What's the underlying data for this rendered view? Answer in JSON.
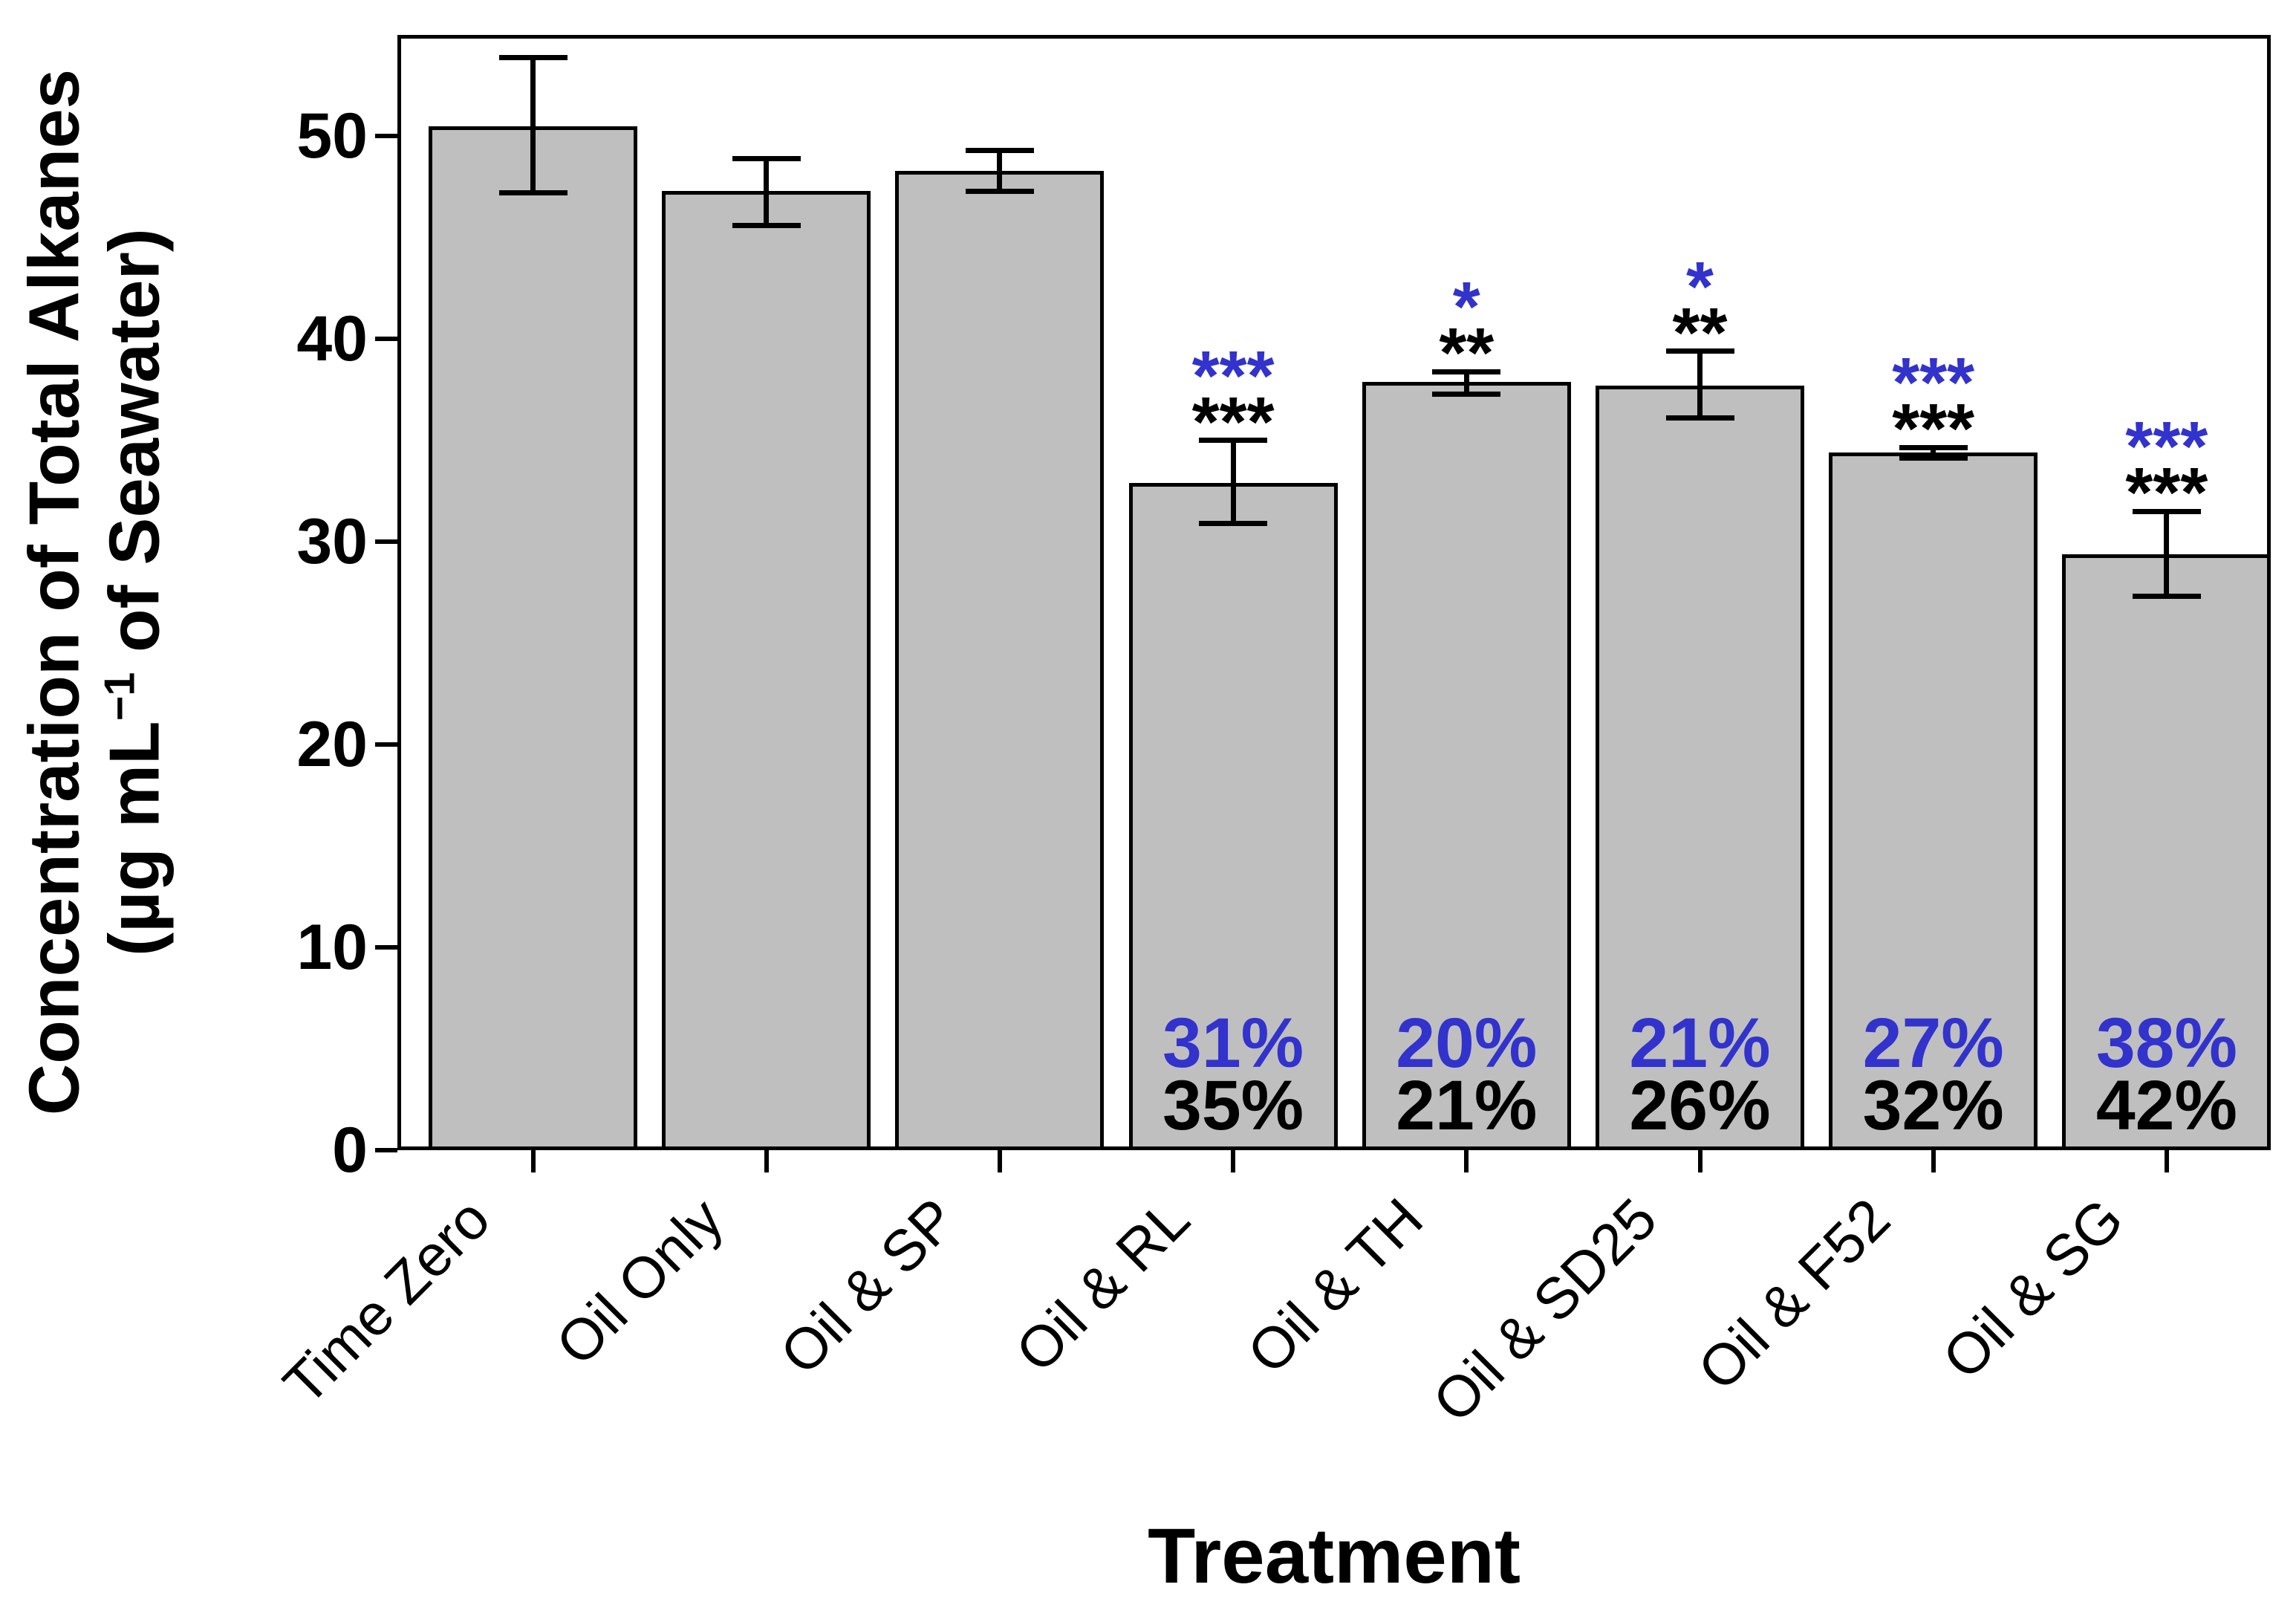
{
  "figure": {
    "xlabel": "Treatment",
    "ylabel_line1": "Concentration of Total Alkanes",
    "ylabel_line2_pre": "(µg mL",
    "ylabel_sup": "−1",
    "ylabel_line2_post": " of Seawater)"
  },
  "colors": {
    "bar_fill": "#BFBFBF",
    "bar_stroke": "#000000",
    "annotation_blue": "#3232CD",
    "annotation_black": "#000000"
  },
  "chart_data": {
    "type": "bar",
    "title": "",
    "xlabel": "Treatment",
    "ylabel": "Concentration of Total Alkanes (µg mL⁻¹ of Seawater)",
    "ylim": [
      0,
      55
    ],
    "yticks": [
      0,
      10,
      20,
      30,
      40,
      50
    ],
    "grid": false,
    "legend": false,
    "categories": [
      "Time Zero",
      "Oil Only",
      "Oil & SP",
      "Oil & RL",
      "Oil & TH",
      "Oil & SD25",
      "Oil & F52",
      "Oil & SG"
    ],
    "values": [
      50.5,
      47.3,
      48.3,
      32.9,
      37.9,
      37.7,
      34.4,
      29.4
    ],
    "error_plus": [
      3.4,
      1.6,
      1.0,
      2.1,
      0.5,
      1.7,
      0.25,
      2.1
    ],
    "error_minus": [
      3.3,
      1.7,
      1.0,
      2.0,
      0.6,
      1.6,
      0.25,
      2.1
    ],
    "significance_blue": [
      "",
      "",
      "",
      "***",
      "*",
      "*",
      "***",
      "***"
    ],
    "significance_black": [
      "",
      "",
      "",
      "***",
      "**",
      "**",
      "***",
      "***"
    ],
    "degradation_blue": [
      "",
      "",
      "",
      "31%",
      "20%",
      "21%",
      "27%",
      "38%"
    ],
    "degradation_black": [
      "",
      "",
      "",
      "35%",
      "21%",
      "26%",
      "32%",
      "42%"
    ]
  }
}
